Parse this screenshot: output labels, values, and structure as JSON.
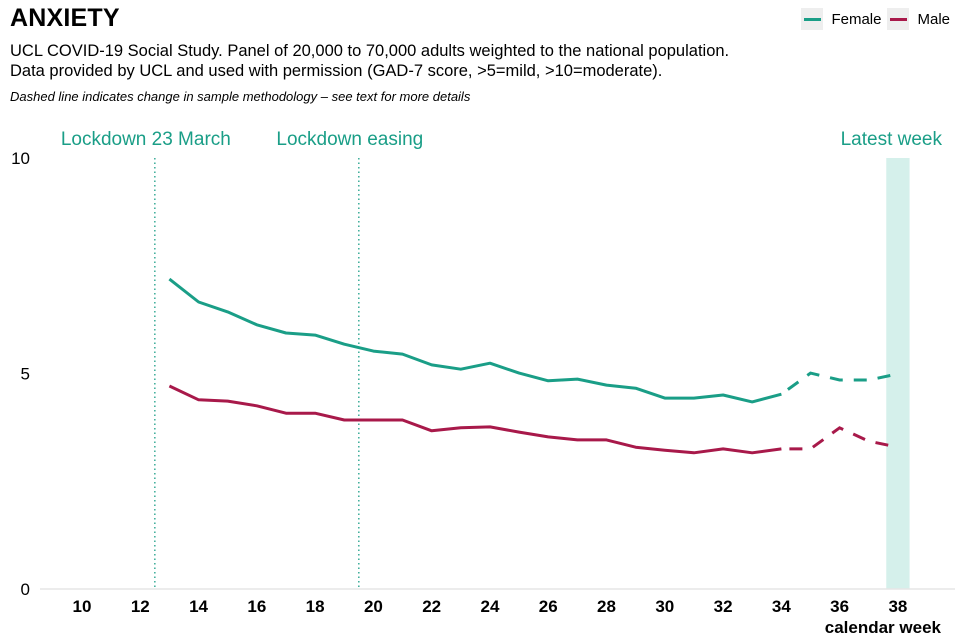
{
  "header": {
    "title": "ANXIETY",
    "subtitle_line1": "UCL COVID-19 Social Study. Panel of 20,000 to 70,000 adults weighted to the national population.",
    "subtitle_line2": "Data provided by UCL and used with permission (GAD-7 score, >5=mild, >10=moderate).",
    "note": "Dashed line indicates change in sample methodology – see text for more details"
  },
  "colors": {
    "female": "#1a9e87",
    "male": "#a8194a",
    "annotation": "#1a9e87",
    "highlight": "#d5f0eb",
    "axis": "#e6e6e6"
  },
  "chart_data": {
    "type": "line",
    "title": "ANXIETY",
    "xlabel": "calendar week",
    "ylabel": "",
    "xlim": [
      8.6,
      40.8
    ],
    "ylim": [
      0,
      10
    ],
    "x_ticks": [
      10,
      12,
      14,
      16,
      18,
      20,
      22,
      24,
      26,
      28,
      30,
      32,
      34,
      36,
      38
    ],
    "y_ticks": [
      0,
      5,
      10
    ],
    "grid": false,
    "legend": {
      "placement": "top-right",
      "entries": [
        "Female",
        "Male"
      ]
    },
    "dashed_from_week": 34,
    "annotations": [
      {
        "label": "Lockdown 23 March",
        "x": 12.5,
        "kind": "dotted-vline"
      },
      {
        "label": "Lockdown easing",
        "x": 19.5,
        "kind": "dotted-vline"
      },
      {
        "label": "Latest week",
        "x": 38,
        "kind": "highlight-band",
        "x_range": [
          37.6,
          38.4
        ]
      }
    ],
    "x": [
      13,
      14,
      15,
      16,
      17,
      18,
      19,
      20,
      21,
      22,
      23,
      24,
      25,
      26,
      27,
      28,
      29,
      30,
      31,
      32,
      33,
      34,
      35,
      36,
      37,
      38
    ],
    "series": [
      {
        "name": "Female",
        "values": [
          7.19,
          6.66,
          6.43,
          6.13,
          5.94,
          5.89,
          5.68,
          5.52,
          5.45,
          5.2,
          5.1,
          5.24,
          5.01,
          4.83,
          4.87,
          4.73,
          4.66,
          4.43,
          4.43,
          4.5,
          4.34,
          4.52,
          5.01,
          4.85,
          4.85,
          4.99
        ]
      },
      {
        "name": "Male",
        "values": [
          4.71,
          4.39,
          4.36,
          4.25,
          4.08,
          4.08,
          3.92,
          3.92,
          3.92,
          3.67,
          3.74,
          3.76,
          3.64,
          3.53,
          3.46,
          3.46,
          3.29,
          3.22,
          3.16,
          3.25,
          3.16,
          3.25,
          3.25,
          3.74,
          3.43,
          3.29
        ]
      }
    ]
  }
}
